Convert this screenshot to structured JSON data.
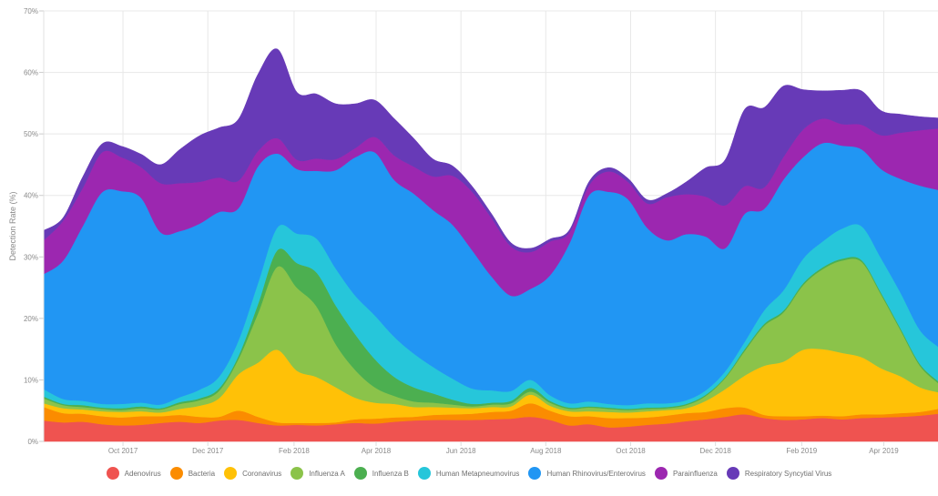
{
  "chart_data": {
    "type": "area",
    "stacked": true,
    "title": "",
    "xlabel": "",
    "ylabel": "Detection Rate (%)",
    "ylim": [
      0,
      70
    ],
    "yticks": [
      0,
      10,
      20,
      30,
      40,
      50,
      60,
      70
    ],
    "ytick_labels": [
      "0%",
      "10%",
      "20%",
      "30%",
      "40%",
      "50%",
      "60%",
      "70%"
    ],
    "xlim": [
      "2017-08-05",
      "2019-05-10"
    ],
    "xticks": [
      "2017-10-01",
      "2017-12-01",
      "2018-02-01",
      "2018-04-01",
      "2018-06-01",
      "2018-08-01",
      "2018-10-01",
      "2018-12-01",
      "2019-02-01",
      "2019-04-01"
    ],
    "xtick_labels": [
      "Oct 2017",
      "Dec 2017",
      "Feb 2018",
      "Apr 2018",
      "Jun 2018",
      "Aug 2018",
      "Oct 2018",
      "Dec 2018",
      "Feb 2019",
      "Apr 2019"
    ],
    "grid": true,
    "legend_position": "bottom-center",
    "x": [
      "2017-08-05",
      "2017-08-19",
      "2017-09-02",
      "2017-09-16",
      "2017-09-30",
      "2017-10-14",
      "2017-10-28",
      "2017-11-11",
      "2017-11-25",
      "2017-12-09",
      "2017-12-23",
      "2018-01-06",
      "2018-01-20",
      "2018-02-03",
      "2018-02-17",
      "2018-03-03",
      "2018-03-17",
      "2018-03-31",
      "2018-04-14",
      "2018-04-28",
      "2018-05-12",
      "2018-05-26",
      "2018-06-09",
      "2018-06-23",
      "2018-07-07",
      "2018-07-21",
      "2018-08-04",
      "2018-08-18",
      "2018-09-01",
      "2018-09-15",
      "2018-09-29",
      "2018-10-13",
      "2018-10-27",
      "2018-11-10",
      "2018-11-24",
      "2018-12-08",
      "2018-12-22",
      "2019-01-05",
      "2019-01-19",
      "2019-02-02",
      "2019-02-16",
      "2019-03-02",
      "2019-03-16",
      "2019-03-30",
      "2019-04-13",
      "2019-04-27",
      "2019-05-10"
    ],
    "series": [
      {
        "name": "Adenovirus",
        "color": "#ef5350",
        "values": [
          3.4,
          3.1,
          3.2,
          2.8,
          2.6,
          2.7,
          3.0,
          3.2,
          3.0,
          3.4,
          3.5,
          3.0,
          2.6,
          2.7,
          2.6,
          2.8,
          3.0,
          2.9,
          3.2,
          3.4,
          3.5,
          3.5,
          3.5,
          3.6,
          3.7,
          4.0,
          3.5,
          2.6,
          2.8,
          2.3,
          2.4,
          2.7,
          2.9,
          3.3,
          3.6,
          4.0,
          4.4,
          3.8,
          3.5,
          3.6,
          3.8,
          3.6,
          3.8,
          3.9,
          4.0,
          4.2,
          4.5
        ]
      },
      {
        "name": "Bacteria",
        "color": "#fb8c00",
        "values": [
          2.2,
          1.5,
          1.3,
          1.3,
          1.3,
          1.4,
          1.1,
          1.1,
          1.0,
          0.6,
          1.5,
          1.0,
          0.5,
          0.3,
          0.4,
          0.3,
          0.6,
          0.8,
          0.7,
          0.6,
          0.8,
          0.9,
          1.0,
          1.2,
          1.3,
          2.2,
          1.5,
          1.5,
          1.3,
          1.5,
          1.4,
          1.2,
          1.3,
          1.3,
          1.2,
          1.4,
          1.1,
          0.5,
          0.6,
          0.5,
          0.4,
          0.5,
          0.6,
          0.5,
          0.6,
          0.6,
          0.8
        ]
      },
      {
        "name": "Coronavirus",
        "color": "#ffc107",
        "values": [
          0.6,
          0.8,
          0.7,
          0.8,
          0.9,
          0.8,
          0.6,
          1.0,
          1.8,
          3.0,
          5.9,
          8.8,
          11.8,
          8.5,
          7.5,
          5.7,
          3.5,
          2.6,
          2.2,
          1.6,
          1.3,
          1.1,
          0.9,
          0.8,
          0.7,
          1.4,
          0.8,
          0.8,
          0.8,
          1.0,
          0.9,
          1.0,
          0.9,
          0.8,
          1.8,
          3.1,
          5.2,
          8.0,
          8.9,
          10.8,
          10.8,
          10.3,
          9.3,
          7.5,
          6.0,
          4.0,
          2.7
        ]
      },
      {
        "name": "Influenza A",
        "color": "#8bc34a",
        "values": [
          0.8,
          0.5,
          0.4,
          0.4,
          0.3,
          0.5,
          0.5,
          0.8,
          0.9,
          1.2,
          2.5,
          8.0,
          13.5,
          13.5,
          11.5,
          7.0,
          4.5,
          2.5,
          1.3,
          0.9,
          0.7,
          0.5,
          0.3,
          0.4,
          0.5,
          0.5,
          0.5,
          0.4,
          0.6,
          0.5,
          0.4,
          0.4,
          0.3,
          0.5,
          0.8,
          1.8,
          4.0,
          6.5,
          8.0,
          10.5,
          13.0,
          15.0,
          15.5,
          12.0,
          7.5,
          3.5,
          1.5
        ]
      },
      {
        "name": "Influenza B",
        "color": "#4caf50",
        "values": [
          0.3,
          0.2,
          0.3,
          0.2,
          0.3,
          0.3,
          0.2,
          0.3,
          0.3,
          0.4,
          0.5,
          1.5,
          2.7,
          4.0,
          5.5,
          6.3,
          5.8,
          4.6,
          3.1,
          2.3,
          1.5,
          0.8,
          0.4,
          0.3,
          0.4,
          0.6,
          0.3,
          0.2,
          0.2,
          0.2,
          0.2,
          0.2,
          0.2,
          0.2,
          0.2,
          0.2,
          0.3,
          0.3,
          0.3,
          0.3,
          0.3,
          0.3,
          0.3,
          0.3,
          0.3,
          0.3,
          0.3
        ]
      },
      {
        "name": "Human Metapneumovirus",
        "color": "#26c6da",
        "values": [
          1.2,
          0.8,
          0.7,
          0.6,
          0.7,
          0.6,
          0.6,
          0.8,
          1.4,
          1.9,
          2.5,
          3.4,
          3.7,
          4.8,
          5.5,
          6.0,
          6.3,
          7.1,
          6.5,
          5.5,
          4.3,
          3.4,
          2.5,
          2.0,
          1.6,
          1.3,
          0.9,
          0.7,
          0.8,
          0.6,
          0.6,
          0.7,
          0.6,
          0.6,
          0.7,
          0.9,
          1.2,
          2.2,
          3.3,
          4.0,
          4.2,
          4.9,
          5.5,
          5.6,
          5.8,
          5.5,
          5.6
        ]
      },
      {
        "name": "Human Rhinovirus/Enterovirus",
        "color": "#2196f3",
        "values": [
          18.7,
          22.5,
          28.4,
          34.4,
          34.6,
          33.3,
          28.0,
          27.0,
          27.0,
          26.8,
          21.5,
          19.0,
          12.0,
          10.5,
          11.0,
          16.0,
          22.5,
          26.5,
          25.5,
          26.0,
          25.5,
          25.0,
          22.5,
          18.5,
          15.5,
          14.8,
          19.5,
          26.0,
          33.5,
          34.5,
          33.5,
          28.5,
          26.5,
          27.0,
          25.0,
          20.0,
          20.8,
          16.5,
          18.0,
          16.5,
          16.0,
          13.5,
          12.5,
          14.5,
          18.5,
          23.5,
          25.5
        ]
      },
      {
        "name": "Parainfluenza",
        "color": "#9c27b0",
        "values": [
          5.5,
          6.5,
          6.2,
          6.5,
          5.5,
          5.0,
          8.0,
          7.8,
          6.8,
          5.6,
          4.5,
          2.5,
          2.5,
          1.5,
          2.0,
          1.8,
          1.5,
          2.5,
          4.0,
          4.4,
          5.5,
          8.0,
          9.5,
          9.5,
          8.0,
          6.0,
          5.5,
          1.8,
          1.6,
          3.3,
          2.8,
          4.0,
          7.0,
          6.5,
          6.5,
          7.0,
          4.5,
          3.5,
          3.7,
          4.5,
          4.0,
          3.5,
          4.0,
          5.5,
          7.5,
          9.0,
          10.0
        ]
      },
      {
        "name": "Respiratory Syncytial Virus",
        "color": "#673ab7",
        "values": [
          1.6,
          0.5,
          1.8,
          1.4,
          1.8,
          2.1,
          3.0,
          5.5,
          7.5,
          8.1,
          10.0,
          12.5,
          14.5,
          11.0,
          10.5,
          9.0,
          7.2,
          6.0,
          6.0,
          4.6,
          2.8,
          1.6,
          0.9,
          0.7,
          0.6,
          0.6,
          0.4,
          0.4,
          0.6,
          0.6,
          0.6,
          0.6,
          0.6,
          2.0,
          4.7,
          7.4,
          12.5,
          13.0,
          11.5,
          6.5,
          4.5,
          5.5,
          5.5,
          4.0,
          3.0,
          2.2,
          1.7
        ]
      }
    ]
  }
}
